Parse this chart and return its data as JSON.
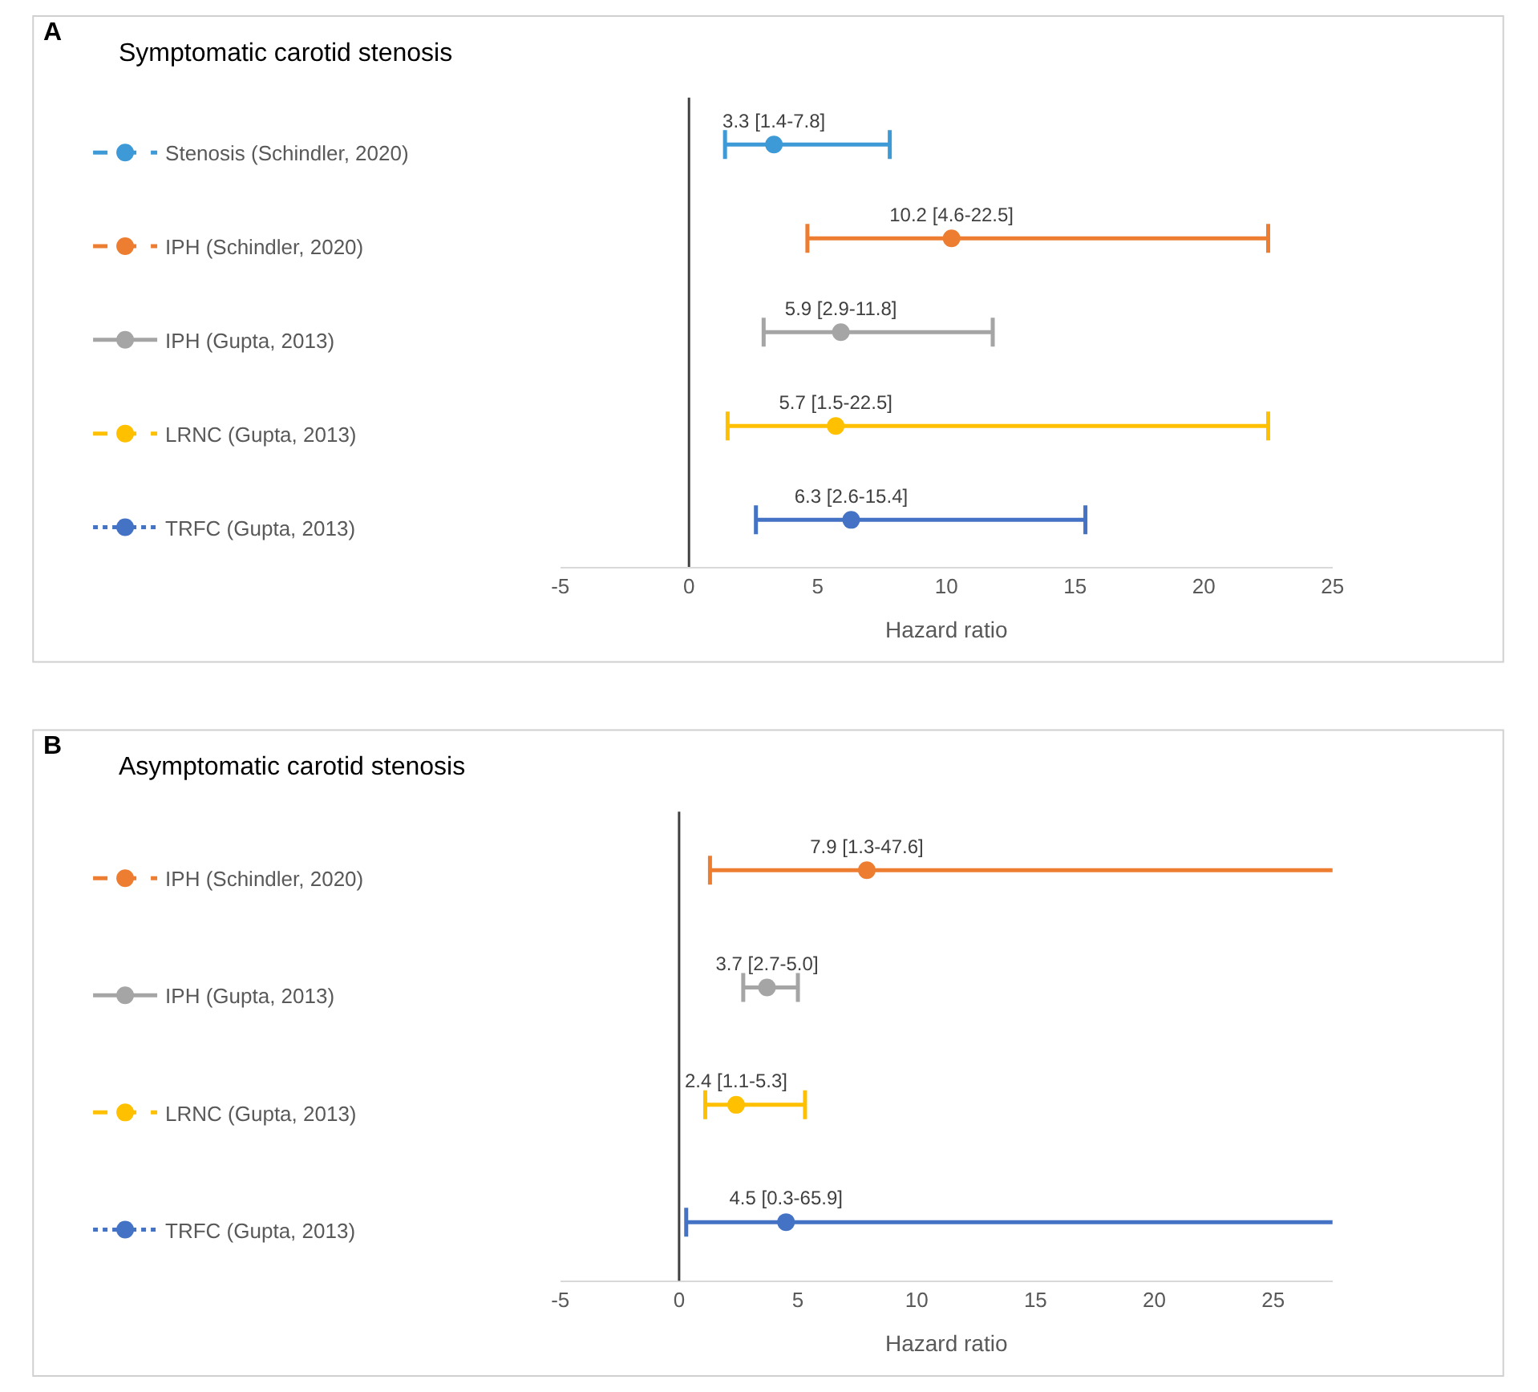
{
  "chart_data": [
    {
      "type": "scatter",
      "title": "Symptomatic carotid stenosis",
      "xlabel": "Hazard ratio",
      "annotations": [
        "A"
      ],
      "orientation": "horizontal",
      "categories": [
        null,
        null,
        null,
        null,
        null
      ],
      "xlim": [
        -5,
        25
      ],
      "xticks": [
        -5,
        0,
        5,
        10,
        15,
        20,
        25
      ],
      "tick_labels": "x",
      "legend": "left",
      "marker": "circle",
      "ref_lines": [
        {
          "axis": "x",
          "value": 0
        }
      ],
      "series": [
        {
          "name": "Stenosis (Schindler, 2020)",
          "color": "#3d9ad6",
          "line_style": "dashed",
          "values": [
            3.3,
            null,
            null,
            null,
            null
          ],
          "errors": [
            [
              1.4,
              7.8
            ],
            null,
            null,
            null,
            null
          ],
          "value_labels": [
            "3.3 [1.4-7.8]",
            null,
            null,
            null,
            null
          ]
        },
        {
          "name": "IPH (Schindler, 2020)",
          "color": "#ed7d31",
          "line_style": "dashed",
          "values": [
            null,
            10.2,
            null,
            null,
            null
          ],
          "errors": [
            null,
            [
              4.6,
              22.5
            ],
            null,
            null,
            null
          ],
          "value_labels": [
            null,
            "10.2 [4.6-22.5]",
            null,
            null,
            null
          ]
        },
        {
          "name": "IPH (Gupta, 2013)",
          "color": "#a5a5a5",
          "line_style": "solid",
          "values": [
            null,
            null,
            5.9,
            null,
            null
          ],
          "errors": [
            null,
            null,
            [
              2.9,
              11.8
            ],
            null,
            null
          ],
          "value_labels": [
            null,
            null,
            "5.9 [2.9-11.8]",
            null,
            null
          ]
        },
        {
          "name": "LRNC (Gupta, 2013)",
          "color": "#ffc000",
          "line_style": "dashed",
          "values": [
            null,
            null,
            null,
            5.7,
            null
          ],
          "errors": [
            null,
            null,
            null,
            [
              1.5,
              22.5
            ],
            null
          ],
          "value_labels": [
            null,
            null,
            null,
            "5.7 [1.5-22.5]",
            null
          ]
        },
        {
          "name": "TRFC (Gupta, 2013)",
          "color": "#4472c4",
          "line_style": "dotted",
          "values": [
            null,
            null,
            null,
            null,
            6.3
          ],
          "errors": [
            null,
            null,
            null,
            null,
            [
              2.6,
              15.4
            ]
          ],
          "value_labels": [
            null,
            null,
            null,
            null,
            "6.3 [2.6-15.4]"
          ]
        }
      ]
    },
    {
      "type": "scatter",
      "title": "Asymptomatic carotid stenosis",
      "xlabel": "Hazard ratio",
      "annotations": [
        "B"
      ],
      "orientation": "horizontal",
      "categories": [
        null,
        null,
        null,
        null
      ],
      "xlim": [
        -5,
        27.5
      ],
      "xticks": [
        -5,
        0,
        5,
        10,
        15,
        20,
        25
      ],
      "tick_labels": "x",
      "legend": "left",
      "marker": "circle",
      "ref_lines": [
        {
          "axis": "x",
          "value": 0
        }
      ],
      "series": [
        {
          "name": "IPH (Schindler, 2020)",
          "color": "#ed7d31",
          "line_style": "dashed",
          "values": [
            7.9,
            null,
            null,
            null
          ],
          "errors": [
            [
              1.3,
              47.6
            ],
            null,
            null,
            null
          ],
          "value_labels": [
            "7.9 [1.3-47.6]",
            null,
            null,
            null
          ]
        },
        {
          "name": "IPH (Gupta, 2013)",
          "color": "#a5a5a5",
          "line_style": "solid",
          "values": [
            null,
            3.7,
            null,
            null
          ],
          "errors": [
            null,
            [
              2.7,
              5.0
            ],
            null,
            null
          ],
          "value_labels": [
            null,
            "3.7 [2.7-5.0]",
            null,
            null
          ]
        },
        {
          "name": "LRNC (Gupta, 2013)",
          "color": "#ffc000",
          "line_style": "dashed",
          "values": [
            null,
            null,
            2.4,
            null
          ],
          "errors": [
            null,
            null,
            [
              1.1,
              5.3
            ],
            null
          ],
          "value_labels": [
            null,
            null,
            "2.4 [1.1-5.3]",
            null
          ]
        },
        {
          "name": "TRFC (Gupta, 2013)",
          "color": "#4472c4",
          "line_style": "dotted",
          "values": [
            null,
            null,
            null,
            4.5
          ],
          "errors": [
            null,
            null,
            null,
            [
              0.3,
              65.9
            ]
          ],
          "value_labels": [
            null,
            null,
            null,
            "4.5 [0.3-65.9]"
          ]
        }
      ]
    }
  ]
}
